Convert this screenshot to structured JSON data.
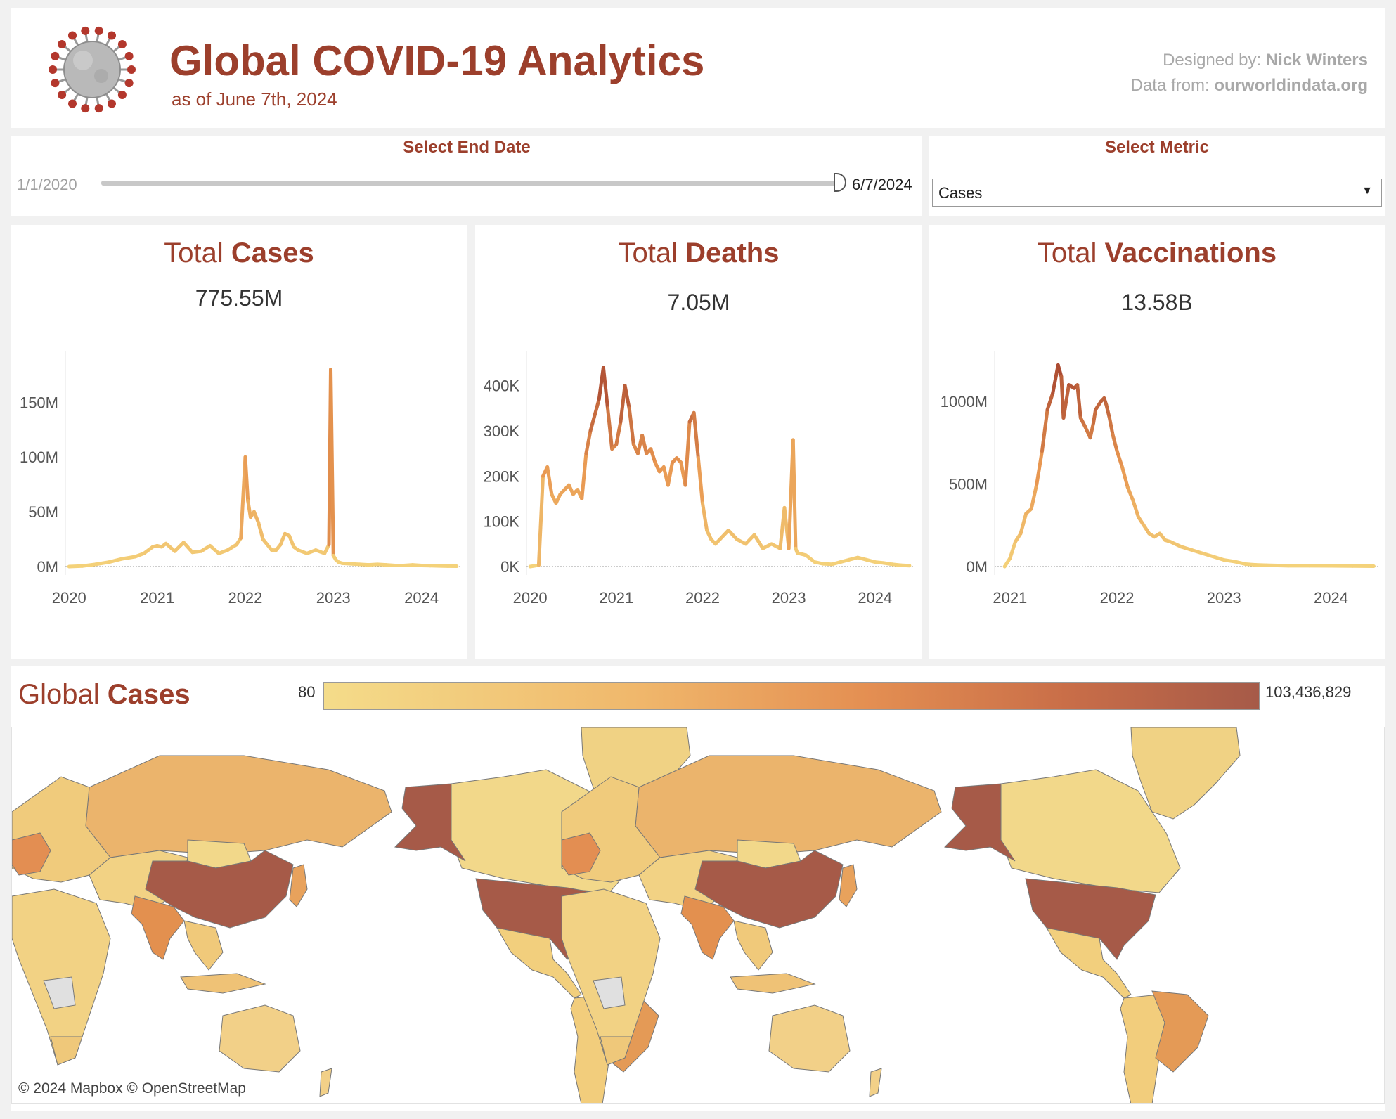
{
  "header": {
    "title": "Global COVID-19 Analytics",
    "subtitle": "as of June 7th, 2024",
    "designed_by_label": "Designed by:",
    "designed_by_name": "Nick Winters",
    "data_from_label": "Data from:",
    "data_from_source": "ourworldindata.org",
    "logo_icon": "coronavirus-icon"
  },
  "controls": {
    "date_label": "Select End Date",
    "start_date": "1/1/2020",
    "end_date": "6/7/2024",
    "slider_value_fraction": 1.0,
    "metric_label": "Select Metric",
    "metric_value": "Cases"
  },
  "colors": {
    "brand": "#9c3f2c",
    "low": "#f4dc8a",
    "mid": "#e48f52",
    "high": "#a65a48",
    "missing": "#e0e0e0"
  },
  "cards": [
    {
      "title_prefix": "Total ",
      "title_metric": "Cases",
      "total": "775.55M"
    },
    {
      "title_prefix": "Total ",
      "title_metric": "Deaths",
      "total": "7.05M"
    },
    {
      "title_prefix": "Total ",
      "title_metric": "Vaccinations",
      "total": "13.58B"
    }
  ],
  "chart_data": [
    {
      "type": "line",
      "title": "Total Cases",
      "xlabel": "",
      "ylabel": "",
      "x_ticks": [
        "2020",
        "2021",
        "2022",
        "2023",
        "2024"
      ],
      "y_ticks": [
        "0M",
        "50M",
        "100M",
        "150M"
      ],
      "y_tick_values": [
        0,
        50,
        100,
        150
      ],
      "ylim": [
        0,
        190
      ],
      "x_range": [
        2019.95,
        2024.45
      ],
      "grid": false,
      "x": [
        2020.0,
        2020.15,
        2020.3,
        2020.45,
        2020.6,
        2020.75,
        2020.85,
        2020.95,
        2021.0,
        2021.05,
        2021.1,
        2021.2,
        2021.3,
        2021.4,
        2021.5,
        2021.6,
        2021.7,
        2021.8,
        2021.9,
        2021.95,
        2022.0,
        2022.03,
        2022.06,
        2022.1,
        2022.15,
        2022.2,
        2022.25,
        2022.3,
        2022.35,
        2022.4,
        2022.45,
        2022.5,
        2022.55,
        2022.6,
        2022.7,
        2022.8,
        2022.9,
        2022.95,
        2022.97,
        2023.0,
        2023.03,
        2023.06,
        2023.1,
        2023.2,
        2023.3,
        2023.4,
        2023.5,
        2023.6,
        2023.7,
        2023.8,
        2023.9,
        2024.0,
        2024.1,
        2024.2,
        2024.3,
        2024.4
      ],
      "y": [
        0,
        0.5,
        2,
        4,
        7,
        9,
        12,
        18,
        19,
        18,
        21,
        14,
        22,
        13,
        14,
        19,
        12,
        15,
        20,
        26,
        100,
        60,
        45,
        50,
        40,
        25,
        20,
        15,
        15,
        20,
        30,
        28,
        18,
        15,
        12,
        15,
        12,
        20,
        180,
        10,
        6,
        4,
        3,
        2.5,
        2,
        1.5,
        2,
        1.5,
        1,
        1,
        1.5,
        1,
        0.8,
        0.6,
        0.4,
        0.3
      ]
    },
    {
      "type": "line",
      "title": "Total Deaths",
      "xlabel": "",
      "ylabel": "",
      "x_ticks": [
        "2020",
        "2021",
        "2022",
        "2023",
        "2024"
      ],
      "y_ticks": [
        "0K",
        "100K",
        "200K",
        "300K",
        "400K"
      ],
      "y_tick_values": [
        0,
        100,
        200,
        300,
        400
      ],
      "ylim": [
        0,
        460
      ],
      "x_range": [
        2019.95,
        2024.45
      ],
      "grid": false,
      "x": [
        2020.0,
        2020.1,
        2020.15,
        2020.2,
        2020.25,
        2020.3,
        2020.35,
        2020.4,
        2020.45,
        2020.5,
        2020.55,
        2020.6,
        2020.65,
        2020.7,
        2020.8,
        2020.85,
        2020.9,
        2020.95,
        2021.0,
        2021.05,
        2021.1,
        2021.15,
        2021.2,
        2021.25,
        2021.3,
        2021.35,
        2021.4,
        2021.45,
        2021.5,
        2021.55,
        2021.6,
        2021.65,
        2021.7,
        2021.75,
        2021.8,
        2021.85,
        2021.9,
        2021.95,
        2022.0,
        2022.05,
        2022.1,
        2022.15,
        2022.2,
        2022.3,
        2022.4,
        2022.5,
        2022.6,
        2022.7,
        2022.8,
        2022.9,
        2022.95,
        2023.0,
        2023.05,
        2023.08,
        2023.1,
        2023.2,
        2023.3,
        2023.4,
        2023.5,
        2023.6,
        2023.7,
        2023.8,
        2023.9,
        2024.0,
        2024.1,
        2024.2,
        2024.3,
        2024.4
      ],
      "y": [
        0,
        3,
        200,
        220,
        160,
        140,
        160,
        170,
        180,
        160,
        170,
        150,
        250,
        300,
        370,
        440,
        350,
        260,
        270,
        320,
        400,
        350,
        270,
        250,
        290,
        250,
        260,
        230,
        210,
        220,
        180,
        230,
        240,
        230,
        180,
        320,
        340,
        240,
        140,
        80,
        60,
        50,
        60,
        80,
        60,
        50,
        70,
        40,
        50,
        40,
        130,
        40,
        280,
        40,
        30,
        25,
        10,
        6,
        5,
        10,
        15,
        20,
        15,
        10,
        8,
        5,
        3,
        2
      ]
    },
    {
      "type": "line",
      "title": "Total Vaccinations",
      "xlabel": "",
      "ylabel": "",
      "x_ticks": [
        "2021",
        "2022",
        "2023",
        "2024"
      ],
      "y_ticks": [
        "0M",
        "500M",
        "1000M"
      ],
      "y_tick_values": [
        0,
        500,
        1000
      ],
      "ylim": [
        0,
        1260
      ],
      "x_range": [
        2020.85,
        2024.45
      ],
      "grid": false,
      "x": [
        2020.95,
        2021.0,
        2021.05,
        2021.1,
        2021.15,
        2021.2,
        2021.25,
        2021.3,
        2021.35,
        2021.4,
        2021.45,
        2021.48,
        2021.5,
        2021.55,
        2021.6,
        2021.63,
        2021.66,
        2021.7,
        2021.75,
        2021.78,
        2021.8,
        2021.85,
        2021.88,
        2021.9,
        2021.93,
        2021.96,
        2022.0,
        2022.05,
        2022.1,
        2022.15,
        2022.2,
        2022.25,
        2022.3,
        2022.35,
        2022.4,
        2022.45,
        2022.5,
        2022.6,
        2022.7,
        2022.8,
        2022.9,
        2023.0,
        2023.1,
        2023.2,
        2023.3,
        2023.4,
        2023.6,
        2023.8,
        2024.0,
        2024.2,
        2024.4
      ],
      "y": [
        0,
        50,
        150,
        200,
        320,
        350,
        500,
        700,
        950,
        1050,
        1220,
        1150,
        900,
        1100,
        1080,
        1100,
        900,
        850,
        780,
        870,
        950,
        1000,
        1020,
        980,
        900,
        800,
        700,
        600,
        480,
        400,
        300,
        250,
        200,
        180,
        200,
        160,
        150,
        120,
        100,
        80,
        60,
        40,
        30,
        15,
        10,
        8,
        5,
        5,
        4,
        3,
        2
      ]
    }
  ],
  "map": {
    "title_prefix": "Global ",
    "title_metric": "Cases",
    "legend_min": "80",
    "legend_max": "103,436,829",
    "attribution": "© 2024 Mapbox  © OpenStreetMap"
  }
}
